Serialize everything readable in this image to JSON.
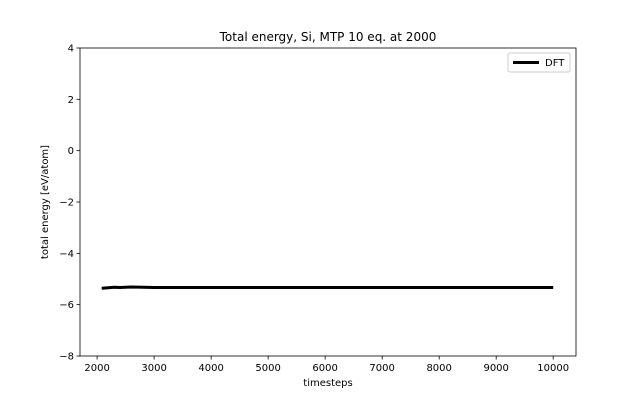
{
  "chart_data": {
    "type": "line",
    "title": "Total energy, Si, MTP 10 eq. at 2000",
    "xlabel": "timesteps",
    "ylabel": "total energy [eV/atom]",
    "xlim": [
      1700,
      10400
    ],
    "ylim": [
      -8,
      4
    ],
    "xticks": [
      2000,
      3000,
      4000,
      5000,
      6000,
      7000,
      8000,
      9000,
      10000
    ],
    "yticks": [
      -8,
      -6,
      -4,
      -2,
      0,
      2,
      4
    ],
    "xtick_labels": [
      "2000",
      "3000",
      "4000",
      "5000",
      "6000",
      "7000",
      "8000",
      "9000",
      "10000"
    ],
    "ytick_labels": [
      "−8",
      "−6",
      "−4",
      "−2",
      "0",
      "2",
      "4"
    ],
    "grid": false,
    "legend_position": "top-right",
    "series": [
      {
        "name": "DFT",
        "color": "#000000",
        "x": [
          2080,
          2200,
          2300,
          2400,
          2500,
          2600,
          2800,
          3000,
          3500,
          4000,
          5000,
          6000,
          7000,
          8000,
          9000,
          10000
        ],
        "y": [
          -5.36,
          -5.34,
          -5.32,
          -5.33,
          -5.32,
          -5.31,
          -5.32,
          -5.33,
          -5.33,
          -5.33,
          -5.33,
          -5.33,
          -5.33,
          -5.33,
          -5.33,
          -5.33
        ]
      }
    ]
  }
}
